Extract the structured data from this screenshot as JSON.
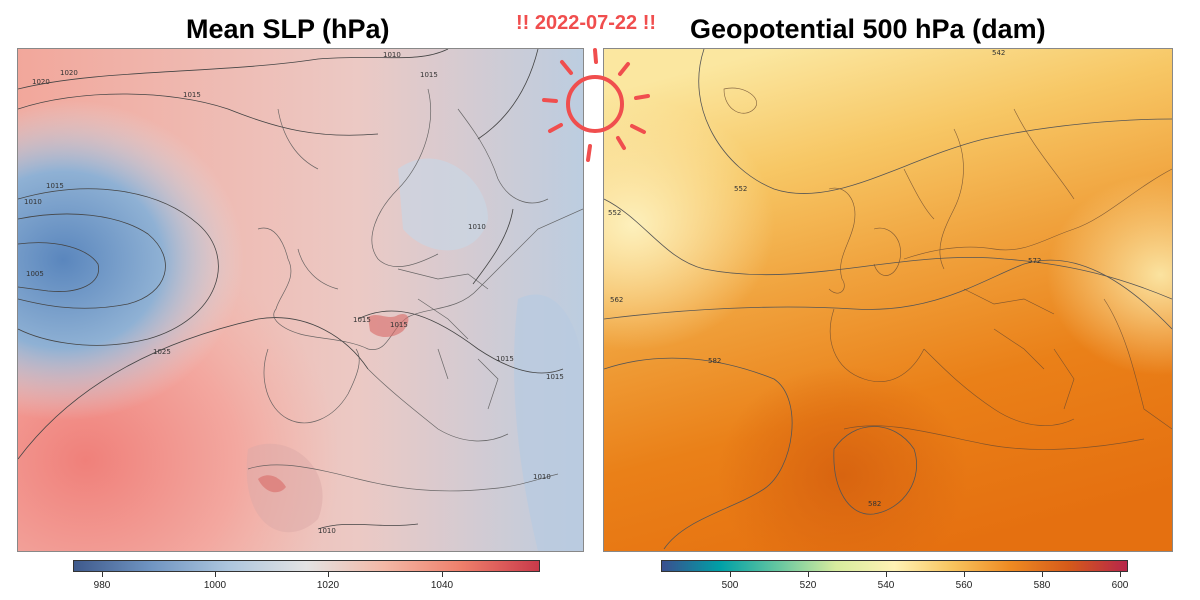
{
  "left_panel": {
    "title": "Mean SLP (hPa)",
    "colorbar_ticks": [
      "980",
      "1000",
      "1020",
      "1040"
    ],
    "contour_labels": [
      "1020",
      "1020",
      "1010",
      "1015",
      "1015",
      "1010",
      "1005",
      "1025",
      "1015",
      "1015",
      "1015",
      "1015",
      "1010",
      "1010",
      "1010",
      "1015"
    ]
  },
  "right_panel": {
    "title": "Geopotential 500 hPa (dam)",
    "colorbar_ticks": [
      "500",
      "520",
      "540",
      "560",
      "580",
      "600"
    ],
    "contour_labels": [
      "542",
      "552",
      "552",
      "562",
      "572",
      "582",
      "582"
    ]
  },
  "date_label": "!! 2022-07-22 !!",
  "sun_icon": "sun-icon",
  "colors": {
    "accent": "#f04e4e",
    "low": "#3f5a8c",
    "high": "#c93a4a",
    "hot": "#e8700f"
  }
}
